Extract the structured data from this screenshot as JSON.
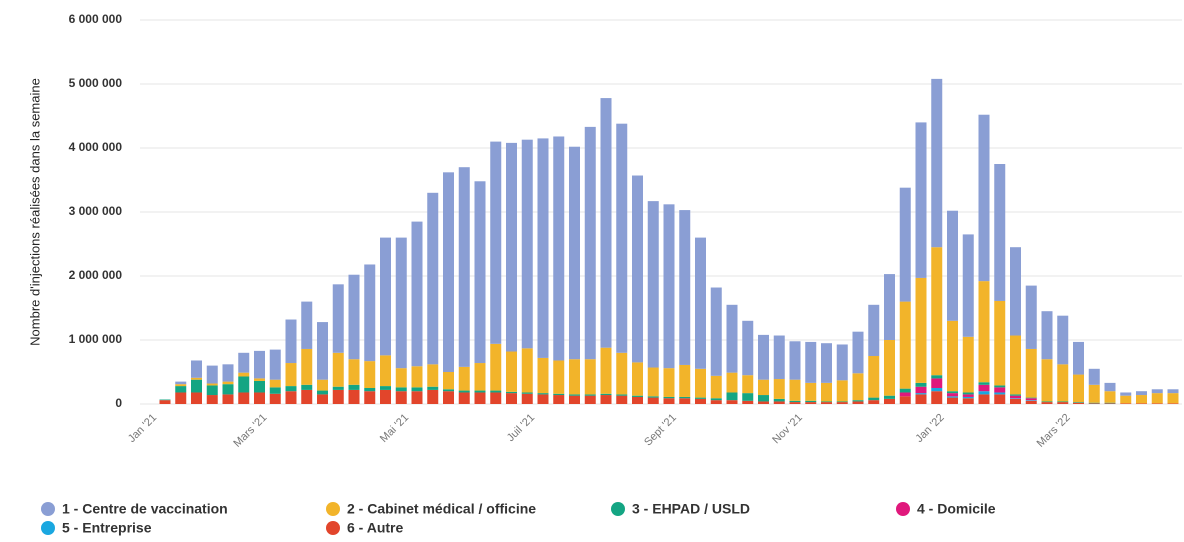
{
  "chart_data": {
    "type": "stacked-bar",
    "y_label": "Nombre d'injections réalisées dans la semaine",
    "categories": [
      "Jan '21",
      null,
      null,
      null,
      null,
      null,
      null,
      "Mars '21",
      null,
      null,
      null,
      null,
      null,
      null,
      null,
      null,
      "Mai '21",
      null,
      null,
      null,
      null,
      null,
      null,
      null,
      "Juil '21",
      null,
      null,
      null,
      null,
      null,
      null,
      null,
      null,
      "Sept '21",
      null,
      null,
      null,
      null,
      null,
      null,
      null,
      "Nov '21",
      null,
      null,
      null,
      null,
      null,
      null,
      null,
      null,
      "Jan '22",
      null,
      null,
      null,
      null,
      null,
      null,
      null,
      "Mars '22",
      null,
      null,
      null,
      null,
      null,
      null
    ],
    "ylim": [
      0,
      6000000
    ],
    "yticks": [
      0,
      {
        "value": 1000000,
        "label": "1 000 000"
      },
      {
        "value": 2000000,
        "label": "2 000 000"
      },
      {
        "value": 3000000,
        "label": "3 000 000"
      },
      {
        "value": 4000000,
        "label": "4 000 000"
      },
      {
        "value": 5000000,
        "label": "5 000 000"
      },
      {
        "value": 6000000,
        "label": "6 000 000"
      }
    ],
    "grid": true,
    "legend": "bottom",
    "series": [
      {
        "name": "1 - Centre de vaccination",
        "color": "#8a9ed4",
        "values": [
          0,
          40000,
          270000,
          280000,
          270000,
          310000,
          430000,
          470000,
          680000,
          740000,
          900000,
          1070000,
          1320000,
          1510000,
          1840000,
          2040000,
          2260000,
          2680000,
          3120000,
          3120000,
          2840000,
          3160000,
          3260000,
          3260000,
          3430000,
          3500000,
          3320000,
          3630000,
          3900000,
          3580000,
          2920000,
          2600000,
          2560000,
          2420000,
          2050000,
          1380000,
          1060000,
          850000,
          700000,
          680000,
          600000,
          640000,
          620000,
          560000,
          650000,
          800000,
          1030000,
          1780000,
          2430000,
          2630000,
          1720000,
          1600000,
          2600000,
          2140000,
          1380000,
          990000,
          750000,
          760000,
          510000,
          250000,
          130000,
          50000,
          60000,
          60000,
          60000
        ]
      },
      {
        "name": "2 - Cabinet médical / officine",
        "color": "#f2b42a",
        "values": [
          0,
          30000,
          30000,
          30000,
          40000,
          60000,
          40000,
          120000,
          360000,
          560000,
          170000,
          530000,
          400000,
          420000,
          480000,
          300000,
          330000,
          350000,
          270000,
          370000,
          430000,
          730000,
          630000,
          690000,
          550000,
          520000,
          550000,
          550000,
          720000,
          650000,
          520000,
          450000,
          450000,
          500000,
          450000,
          350000,
          310000,
          280000,
          240000,
          310000,
          330000,
          280000,
          290000,
          330000,
          420000,
          650000,
          870000,
          1360000,
          1640000,
          2000000,
          1100000,
          870000,
          1580000,
          1320000,
          920000,
          760000,
          660000,
          580000,
          430000,
          280000,
          180000,
          120000,
          130000,
          160000,
          160000
        ]
      },
      {
        "name": "3 - EHPAD / USLD",
        "color": "#14a583",
        "values": [
          10000,
          100000,
          200000,
          150000,
          160000,
          250000,
          180000,
          100000,
          80000,
          80000,
          60000,
          50000,
          80000,
          50000,
          60000,
          60000,
          60000,
          50000,
          30000,
          30000,
          30000,
          30000,
          20000,
          20000,
          20000,
          20000,
          20000,
          20000,
          20000,
          20000,
          20000,
          20000,
          20000,
          20000,
          20000,
          30000,
          120000,
          120000,
          100000,
          40000,
          20000,
          20000,
          10000,
          10000,
          20000,
          40000,
          50000,
          60000,
          60000,
          50000,
          30000,
          30000,
          40000,
          30000,
          20000,
          10000,
          10000,
          10000,
          10000,
          10000,
          10000,
          0,
          0,
          0,
          0
        ]
      },
      {
        "name": "4 - Domicile",
        "color": "#e0187c",
        "values": [
          0,
          0,
          0,
          0,
          0,
          0,
          0,
          0,
          0,
          0,
          0,
          0,
          0,
          0,
          0,
          0,
          0,
          0,
          0,
          0,
          0,
          0,
          0,
          0,
          0,
          0,
          0,
          0,
          0,
          0,
          0,
          0,
          0,
          0,
          0,
          0,
          0,
          0,
          0,
          0,
          0,
          0,
          0,
          0,
          0,
          0,
          0,
          60000,
          100000,
          150000,
          50000,
          40000,
          100000,
          80000,
          40000,
          30000,
          0,
          0,
          0,
          0,
          0,
          0,
          0,
          0,
          0
        ]
      },
      {
        "name": "5 - Entreprise",
        "color": "#1aa7e0",
        "values": [
          0,
          0,
          0,
          0,
          0,
          0,
          0,
          0,
          0,
          0,
          0,
          0,
          0,
          0,
          0,
          0,
          0,
          0,
          0,
          0,
          0,
          0,
          0,
          0,
          0,
          0,
          0,
          0,
          0,
          0,
          0,
          0,
          0,
          0,
          0,
          0,
          0,
          0,
          0,
          0,
          0,
          0,
          0,
          0,
          0,
          0,
          0,
          0,
          20000,
          50000,
          20000,
          20000,
          50000,
          30000,
          10000,
          10000,
          0,
          0,
          0,
          0,
          0,
          0,
          0,
          0,
          0
        ]
      },
      {
        "name": "6 - Autre",
        "color": "#e2452b",
        "values": [
          60000,
          180000,
          180000,
          140000,
          150000,
          180000,
          180000,
          160000,
          200000,
          220000,
          150000,
          220000,
          220000,
          200000,
          220000,
          200000,
          200000,
          220000,
          200000,
          180000,
          180000,
          180000,
          170000,
          160000,
          150000,
          140000,
          130000,
          130000,
          140000,
          130000,
          110000,
          100000,
          90000,
          90000,
          80000,
          60000,
          60000,
          50000,
          40000,
          40000,
          30000,
          30000,
          30000,
          30000,
          40000,
          60000,
          80000,
          120000,
          150000,
          200000,
          100000,
          90000,
          150000,
          150000,
          80000,
          50000,
          30000,
          30000,
          20000,
          10000,
          10000,
          10000,
          10000,
          10000,
          10000
        ]
      }
    ]
  }
}
